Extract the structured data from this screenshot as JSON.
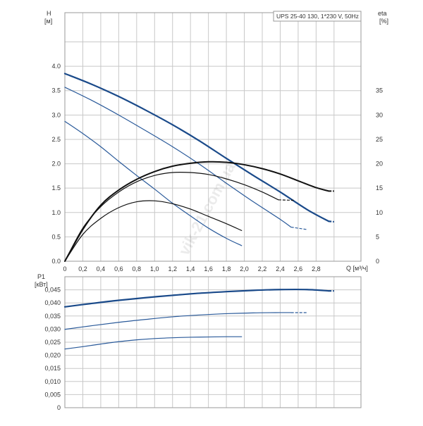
{
  "chart_data": [
    {
      "type": "line",
      "title": "UPS 25-40 130, 1*230 V, 50Hz",
      "xlabel": "Q [м³/ч]",
      "ylabel_left_line1": "H",
      "ylabel_left_line2": "[м]",
      "ylabel_right_line1": "eta",
      "ylabel_right_line2": "[%]",
      "xlim": [
        0,
        3.3
      ],
      "ylim": [
        0,
        5.1
      ],
      "y2lim": [
        0,
        51
      ],
      "x_ticks": [
        "0",
        "0,2",
        "0,4",
        "0,6",
        "0,8",
        "1,0",
        "1,2",
        "1,4",
        "1,6",
        "1,8",
        "2,0",
        "2,2",
        "2,4",
        "2,6",
        "2,8"
      ],
      "y_ticks": [
        "0.0",
        "0.5",
        "1.0",
        "1.5",
        "2.0",
        "2.5",
        "3.0",
        "3.5",
        "4.0"
      ],
      "y2_ticks": [
        "0",
        "5",
        "10",
        "15",
        "20",
        "25",
        "30",
        "35"
      ],
      "grid": true,
      "series": [
        {
          "axis": "H",
          "color": "#1a4a8a",
          "width": 2.2,
          "x": [
            0,
            0.3,
            0.6,
            0.9,
            1.2,
            1.5,
            1.8,
            2.1,
            2.4,
            2.7,
            2.94
          ],
          "y": [
            3.85,
            3.63,
            3.38,
            3.1,
            2.8,
            2.47,
            2.11,
            1.76,
            1.42,
            1.06,
            0.82
          ],
          "dashed_from": 2.9,
          "end_x": 3.0,
          "end_y": 0.81
        },
        {
          "axis": "H",
          "color": "#2a5a9a",
          "width": 1.2,
          "x": [
            0,
            0.3,
            0.6,
            0.9,
            1.2,
            1.5,
            1.8,
            2.1,
            2.4,
            2.52
          ],
          "y": [
            3.57,
            3.3,
            3.0,
            2.68,
            2.35,
            1.99,
            1.6,
            1.22,
            0.86,
            0.7
          ],
          "dashed_from": 2.52,
          "end_x": 2.7,
          "end_y": 0.65
        },
        {
          "axis": "H",
          "color": "#2a5a9a",
          "width": 1.2,
          "x": [
            0,
            0.2,
            0.4,
            0.6,
            0.8,
            1.0,
            1.2,
            1.4,
            1.6,
            1.8,
            1.97
          ],
          "y": [
            2.87,
            2.62,
            2.35,
            2.05,
            1.76,
            1.48,
            1.19,
            0.93,
            0.68,
            0.47,
            0.32
          ],
          "dashed_from": null
        },
        {
          "axis": "eta",
          "color": "#111111",
          "width": 2.0,
          "x": [
            0,
            0.2,
            0.4,
            0.6,
            0.8,
            1.0,
            1.2,
            1.4,
            1.6,
            1.8,
            2.0,
            2.2,
            2.4,
            2.6,
            2.8,
            2.94
          ],
          "y": [
            0,
            6.5,
            11.5,
            14.6,
            16.8,
            18.4,
            19.5,
            20.1,
            20.4,
            20.3,
            19.8,
            19.0,
            17.9,
            16.5,
            15.1,
            14.4
          ],
          "dashed_from": 2.94,
          "end_x": 3.0,
          "end_y": 14.4
        },
        {
          "axis": "eta",
          "color": "#111111",
          "width": 1.2,
          "x": [
            0,
            0.2,
            0.4,
            0.6,
            0.8,
            1.0,
            1.2,
            1.4,
            1.6,
            1.8,
            2.0,
            2.2,
            2.38
          ],
          "y": [
            0,
            6.8,
            11.2,
            14.2,
            16.3,
            17.6,
            18.2,
            18.2,
            17.8,
            16.9,
            15.7,
            14.2,
            12.6
          ],
          "dashed_from": 2.38,
          "end_x": 2.55,
          "end_y": 12.5
        },
        {
          "axis": "eta",
          "color": "#111111",
          "width": 1.2,
          "x": [
            0,
            0.2,
            0.4,
            0.6,
            0.8,
            1.0,
            1.2,
            1.4,
            1.6,
            1.8,
            1.97
          ],
          "y": [
            0,
            5.5,
            8.8,
            11.0,
            12.2,
            12.4,
            11.8,
            10.7,
            9.2,
            7.7,
            6.3
          ],
          "dashed_from": null
        }
      ]
    },
    {
      "type": "line",
      "ylabel_left_line1": "P1",
      "ylabel_left_line2": "[кВт]",
      "xlim": [
        0,
        3.3
      ],
      "ylim": [
        0,
        0.05
      ],
      "y_ticks": [
        "0",
        "0,005",
        "0,010",
        "0,015",
        "0,020",
        "0,025",
        "0,030",
        "0,035",
        "0,040",
        "0,045"
      ],
      "grid": true,
      "series": [
        {
          "color": "#1a4a8a",
          "width": 2.2,
          "x": [
            0,
            0.3,
            0.6,
            0.9,
            1.2,
            1.5,
            1.8,
            2.1,
            2.4,
            2.7,
            2.94
          ],
          "y": [
            0.0385,
            0.0398,
            0.041,
            0.042,
            0.0429,
            0.0437,
            0.0443,
            0.0448,
            0.0451,
            0.0451,
            0.0446
          ],
          "dashed_from": 2.94,
          "end_x": 3.0,
          "end_y": 0.0446
        },
        {
          "color": "#2a5a9a",
          "width": 1.2,
          "x": [
            0,
            0.3,
            0.6,
            0.9,
            1.2,
            1.5,
            1.8,
            2.1,
            2.4,
            2.52
          ],
          "y": [
            0.0299,
            0.0313,
            0.0326,
            0.0337,
            0.0347,
            0.0354,
            0.0359,
            0.0362,
            0.0363,
            0.0363
          ],
          "dashed_from": 2.52,
          "end_x": 2.7,
          "end_y": 0.0363
        },
        {
          "color": "#2a5a9a",
          "width": 1.2,
          "x": [
            0,
            0.2,
            0.4,
            0.6,
            0.8,
            1.0,
            1.2,
            1.4,
            1.6,
            1.8,
            1.97
          ],
          "y": [
            0.0224,
            0.0233,
            0.0243,
            0.0252,
            0.0259,
            0.0264,
            0.0267,
            0.0269,
            0.027,
            0.0271,
            0.0271
          ],
          "dashed_from": null
        }
      ]
    }
  ],
  "watermark": "vik-21.com.ua"
}
